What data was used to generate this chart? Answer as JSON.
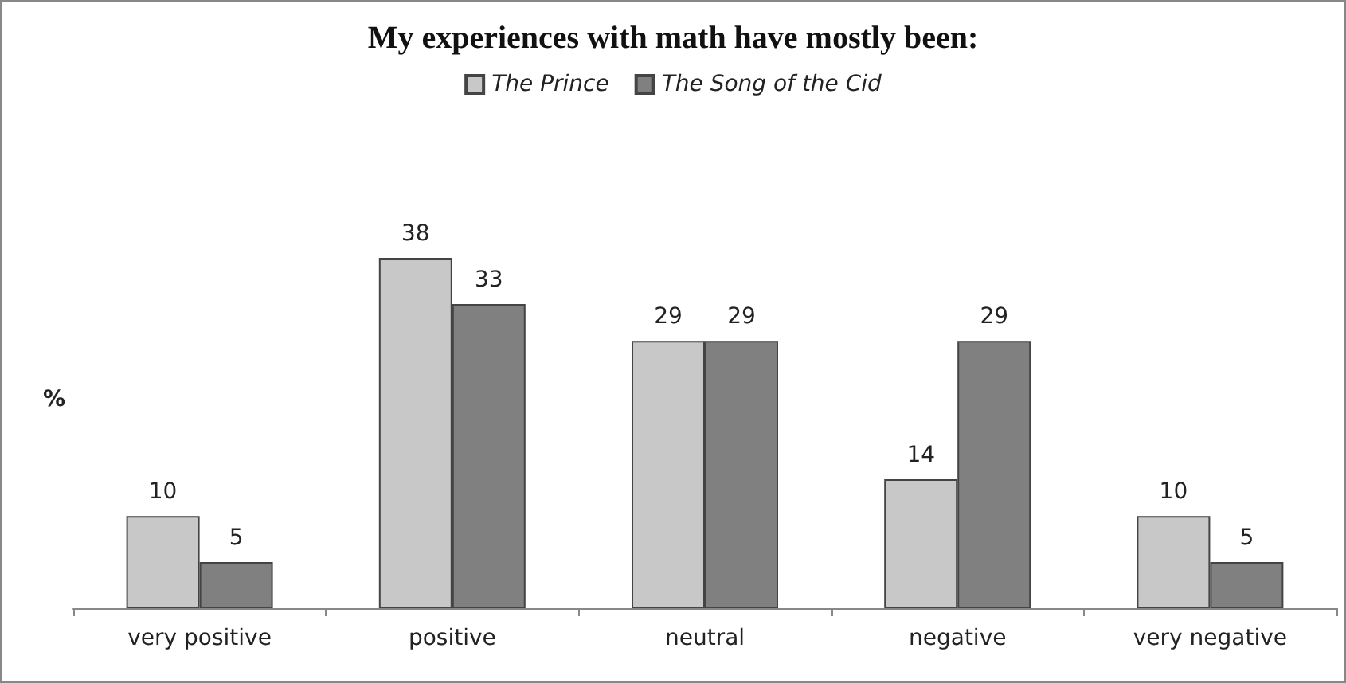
{
  "chart_data": {
    "type": "bar",
    "title": "My experiences with math have mostly been:",
    "ylabel": "%",
    "categories": [
      "very positive",
      "positive",
      "neutral",
      "negative",
      "very negative"
    ],
    "series": [
      {
        "name": "The Prince",
        "color": "#c8c8c8",
        "values": [
          10,
          38,
          29,
          14,
          10
        ]
      },
      {
        "name": "The Song of the Cid",
        "color": "#808080",
        "values": [
          5,
          33,
          29,
          29,
          5
        ]
      }
    ],
    "data_labels": true,
    "legend": "top",
    "grid": false
  }
}
